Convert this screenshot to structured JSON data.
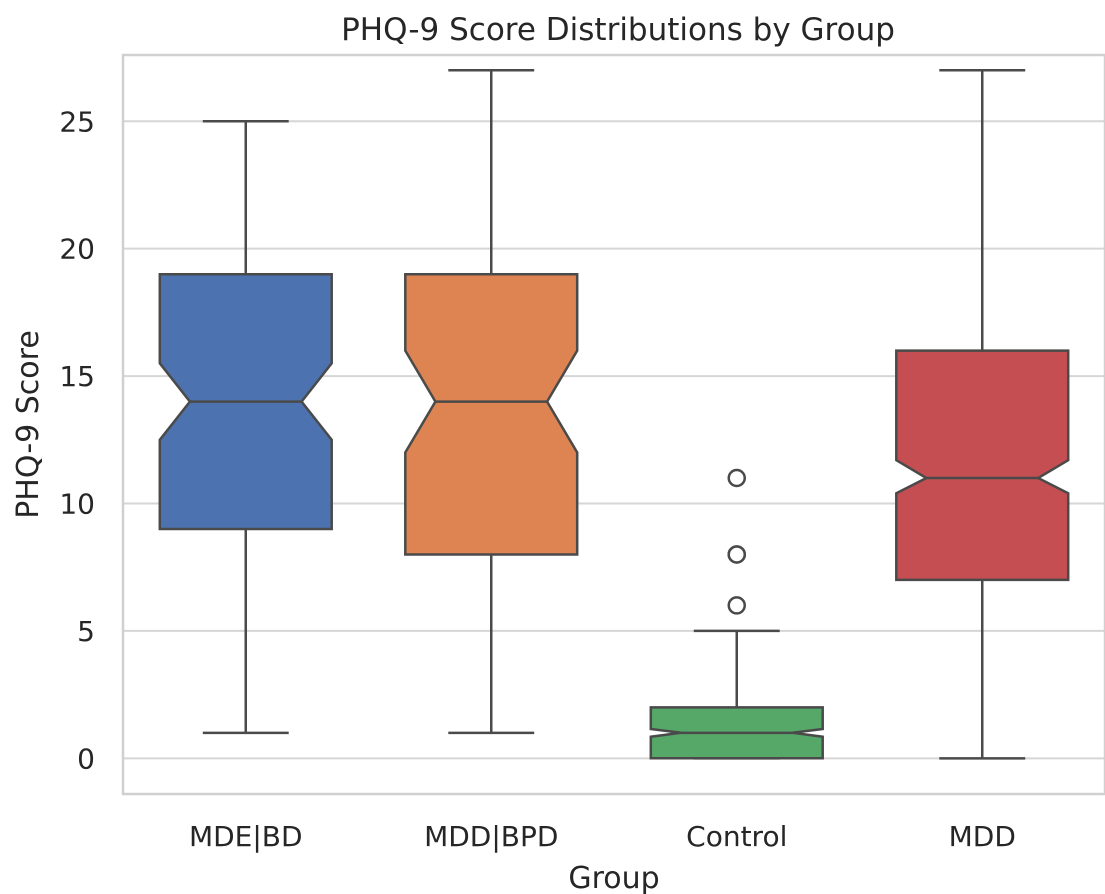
{
  "chart_data": {
    "type": "box",
    "title": "PHQ-9 Score Distributions by Group",
    "xlabel": "Group",
    "ylabel": "PHQ-9 Score",
    "categories": [
      "MDE|BD",
      "MDD|BPD",
      "Control",
      "MDD"
    ],
    "ylim": [
      -1.4,
      27.6
    ],
    "yticks": [
      0,
      5,
      10,
      15,
      20,
      25
    ],
    "grid": true,
    "notched": true,
    "colors": [
      "#4c72b0",
      "#dd8452",
      "#55a868",
      "#c44e52"
    ],
    "boxes": [
      {
        "name": "MDE|BD",
        "whisker_low": 1,
        "q1": 9,
        "median": 14,
        "q3": 19,
        "whisker_high": 25,
        "notch_low": 12.5,
        "notch_high": 15.5,
        "outliers": []
      },
      {
        "name": "MDD|BPD",
        "whisker_low": 1,
        "q1": 8,
        "median": 14,
        "q3": 19,
        "whisker_high": 27,
        "notch_low": 12,
        "notch_high": 16,
        "outliers": []
      },
      {
        "name": "Control",
        "whisker_low": 0,
        "q1": 0,
        "median": 1,
        "q3": 2,
        "whisker_high": 5,
        "notch_low": 0.85,
        "notch_high": 1.15,
        "outliers": [
          6,
          8,
          8,
          11
        ]
      },
      {
        "name": "MDD",
        "whisker_low": 0,
        "q1": 7,
        "median": 11,
        "q3": 16,
        "whisker_high": 27,
        "notch_low": 10.4,
        "notch_high": 11.7,
        "outliers": []
      }
    ]
  }
}
